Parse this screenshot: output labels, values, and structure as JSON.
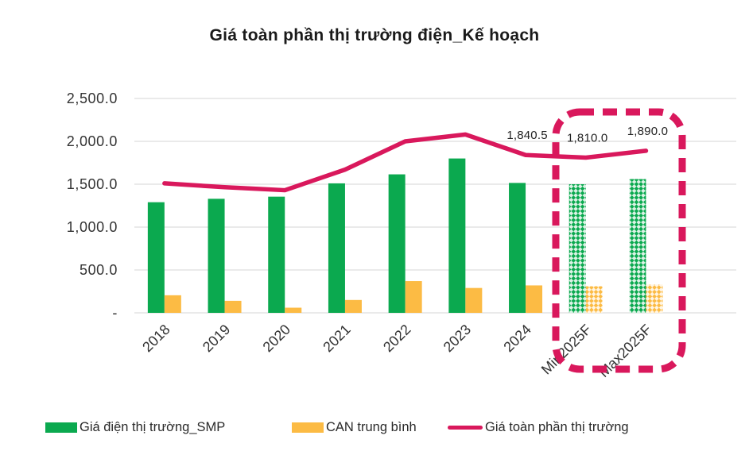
{
  "title": "Giá toàn phần thị trường điện_Kế hoạch",
  "chart_data": {
    "type": "bar+line",
    "title": "Giá toàn phần thị trường điện_Kế hoạch",
    "categories": [
      "2018",
      "2019",
      "2020",
      "2021",
      "2022",
      "2023",
      "2024",
      "Min2025F",
      "Max2025F"
    ],
    "forecast_from_index": 7,
    "series": [
      {
        "name": "Giá điện thị trường_SMP",
        "type": "bar",
        "values": [
          1290,
          1330,
          1355,
          1510,
          1615,
          1800,
          1515,
          1500,
          1560
        ]
      },
      {
        "name": "CAN trung bình",
        "type": "bar",
        "values": [
          205,
          140,
          60,
          150,
          370,
          290,
          320,
          310,
          330
        ]
      },
      {
        "name": "Giá toàn phần thị trường",
        "type": "line",
        "values": [
          1510,
          1465,
          1430,
          1670,
          2000,
          2080,
          1840.5,
          1810,
          1890
        ],
        "point_labels": {
          "6": "1,840.5",
          "7": "1,810.0",
          "8": "1,890.0"
        }
      }
    ],
    "y_axis": {
      "ticks": [
        {
          "value": 0,
          "label": "-"
        },
        {
          "value": 500,
          "label": "500.0"
        },
        {
          "value": 1000,
          "label": "1,000.0"
        },
        {
          "value": 1500,
          "label": "1,500.0"
        },
        {
          "value": 2000,
          "label": "2,000.0"
        },
        {
          "value": 2500,
          "label": "2,500.0"
        }
      ],
      "ylim": [
        0,
        2500
      ]
    },
    "grid": true,
    "legend_position": "bottom",
    "x_labels_rotation_deg": -45,
    "highlight_box": {
      "categories": [
        "Min2025F",
        "Max2025F"
      ],
      "style": "dashed",
      "color": "#D9185C"
    },
    "colors": {
      "smp": "#0BA94F",
      "can": "#FCBB44",
      "line": "#D9185C",
      "grid": "#E4E4E4",
      "text": "#333333"
    }
  },
  "legend": [
    {
      "label": "Giá điện thị trường_SMP",
      "swatch": "smp"
    },
    {
      "label": "CAN trung bình",
      "swatch": "can"
    },
    {
      "label": "Giá toàn phần thị trường",
      "swatch": "line"
    }
  ]
}
